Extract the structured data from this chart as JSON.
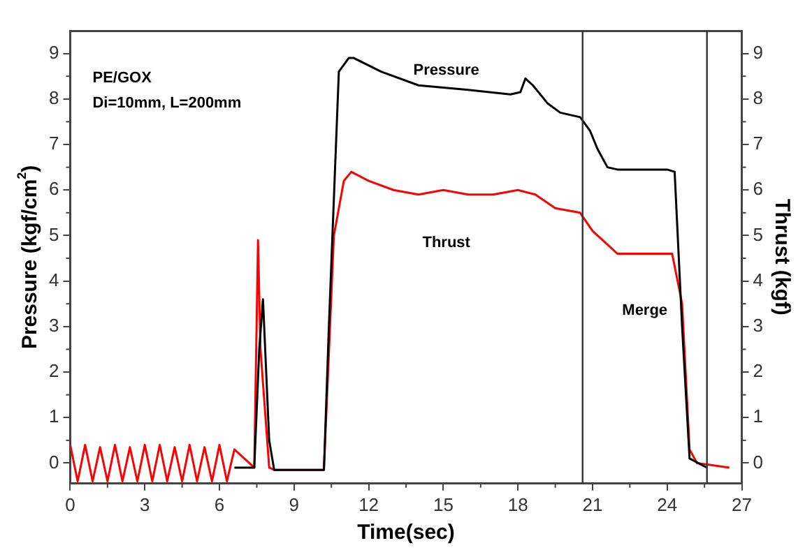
{
  "chart_data": {
    "type": "line",
    "xlabel": "Time(sec)",
    "ylabel": "Pressure (kgf/cm$^{2}$)",
    "y2label": "Thrust (kgf)",
    "xlim": [
      0,
      27
    ],
    "xticks": [
      0,
      3,
      6,
      9,
      12,
      15,
      18,
      21,
      24,
      27
    ],
    "ylim": [
      -0.45,
      9.5
    ],
    "yticks": [
      0,
      1,
      2,
      3,
      4,
      5,
      6,
      7,
      8,
      9
    ],
    "y2lim": [
      -0.45,
      9.5
    ],
    "y2ticks": [
      0,
      1,
      2,
      3,
      4,
      5,
      6,
      7,
      8,
      9
    ],
    "grid": false,
    "legend": false,
    "marker": "none",
    "line_style": "solid",
    "series": [
      {
        "name": "Pressure",
        "color": "#000000",
        "x": [
          6.6,
          7.4,
          7.6,
          7.75,
          8.0,
          8.2,
          10.2,
          10.4,
          10.8,
          11.2,
          11.4,
          12.5,
          14,
          16,
          17.7,
          18.1,
          18.3,
          18.6,
          19.2,
          19.7,
          20.5,
          20.9,
          21.2,
          21.6,
          22,
          24,
          24.3,
          24.6,
          24.9,
          25.6
        ],
        "values": [
          -0.1,
          -0.1,
          2.5,
          3.6,
          0.5,
          -0.15,
          -0.15,
          3,
          8.6,
          8.9,
          8.9,
          8.6,
          8.3,
          8.2,
          8.1,
          8.15,
          8.45,
          8.3,
          7.9,
          7.7,
          7.6,
          7.3,
          6.9,
          6.5,
          6.45,
          6.45,
          6.4,
          3,
          0.1,
          -0.1
        ]
      },
      {
        "name": "Thrust",
        "color": "#ff0000",
        "axis": "y2",
        "x": [
          0,
          0.3,
          0.6,
          0.9,
          1.2,
          1.5,
          1.8,
          2.1,
          2.4,
          2.7,
          3.0,
          3.3,
          3.6,
          3.9,
          4.2,
          4.5,
          4.8,
          5.1,
          5.4,
          5.7,
          6.0,
          6.3,
          6.6,
          7.4,
          7.55,
          7.65,
          8.0,
          8.2,
          10.2,
          10.6,
          11,
          11.3,
          12,
          13,
          14,
          15,
          16,
          17,
          18,
          18.7,
          19.5,
          20.5,
          21,
          21.6,
          22,
          24.2,
          24.6,
          24.9,
          25.2,
          26.5
        ],
        "values": [
          0.4,
          -0.4,
          0.4,
          -0.4,
          0.35,
          -0.4,
          0.4,
          -0.4,
          0.35,
          -0.4,
          0.4,
          -0.4,
          0.4,
          -0.4,
          0.35,
          -0.4,
          0.4,
          -0.4,
          0.35,
          -0.4,
          0.4,
          -0.4,
          0.3,
          -0.1,
          4.9,
          2.5,
          -0.1,
          -0.15,
          -0.15,
          5,
          6.2,
          6.4,
          6.2,
          6.0,
          5.9,
          6.0,
          5.9,
          5.9,
          6.0,
          5.9,
          5.6,
          5.5,
          5.1,
          4.8,
          4.6,
          4.6,
          3.5,
          0.3,
          0,
          -0.1
        ]
      }
    ],
    "ref_lines": [
      {
        "axis": "x",
        "value": 20.6,
        "color": "#333333"
      },
      {
        "axis": "x",
        "value": 25.6,
        "color": "#333333"
      }
    ],
    "annotations": [
      "PE/GOX",
      "Di=10mm, L=200mm",
      "Merge"
    ]
  }
}
